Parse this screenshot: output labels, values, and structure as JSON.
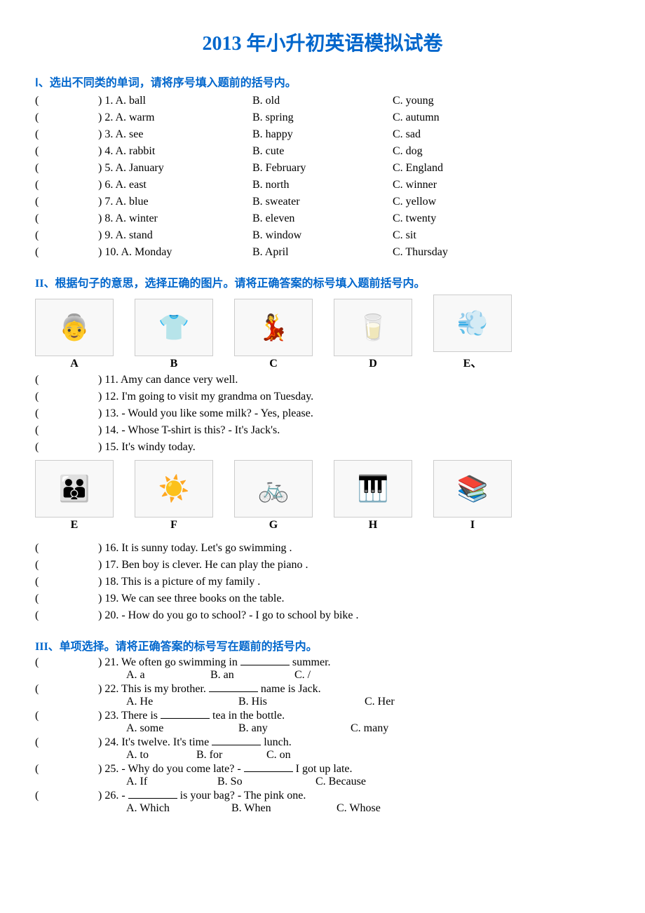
{
  "title": "2013 年小升初英语模拟试卷",
  "colors": {
    "accent": "#0066cc",
    "text": "#000000",
    "bg": "#ffffff"
  },
  "section1": {
    "header": "Ⅰ、选出不同类的单词，请将序号填入题前的括号内。",
    "paren": "(",
    "paren_close": ")",
    "questions": [
      {
        "n": "1",
        "a": "A. ball",
        "b": "B. old",
        "c": "C. young"
      },
      {
        "n": "2",
        "a": "A. warm",
        "b": "B. spring",
        "c": "C. autumn"
      },
      {
        "n": "3",
        "a": "A. see",
        "b": "B. happy",
        "c": "C. sad"
      },
      {
        "n": "4",
        "a": "A. rabbit",
        "b": "B. cute",
        "c": "C. dog"
      },
      {
        "n": "5",
        "a": "A. January",
        "b": "B. February",
        "c": "C. England"
      },
      {
        "n": "6",
        "a": "A. east",
        "b": "B. north",
        "c": "C. winner"
      },
      {
        "n": "7",
        "a": "A. blue",
        "b": "B. sweater",
        "c": "C. yellow"
      },
      {
        "n": "8",
        "a": "A. winter",
        "b": "B. eleven",
        "c": "C. twenty"
      },
      {
        "n": "9",
        "a": "A. stand",
        "b": "B. window",
        "c": "C. sit"
      },
      {
        "n": "10",
        "a": "A. Monday",
        "b": "B. April",
        "c": "C. Thursday"
      }
    ]
  },
  "section2": {
    "header": "II、根据句子的意思，选择正确的图片。请将正确答案的标号填入题前括号内。",
    "images1": [
      {
        "label": "A",
        "icon": "👵"
      },
      {
        "label": "B",
        "icon": "👕"
      },
      {
        "label": "C",
        "icon": "💃"
      },
      {
        "label": "D",
        "icon": "🥛"
      },
      {
        "label": "E、",
        "icon": "💨"
      }
    ],
    "questions1": [
      {
        "n": "11",
        "text": "Amy can dance very well."
      },
      {
        "n": "12",
        "text": "I'm going to visit my grandma on Tuesday."
      },
      {
        "n": "13",
        "text": "- Would you like some milk?          - Yes, please."
      },
      {
        "n": "14",
        "text": "- Whose T-shirt is this?        - It's Jack's."
      },
      {
        "n": "15",
        "text": "It's windy today."
      }
    ],
    "images2": [
      {
        "label": "E",
        "icon": "👪"
      },
      {
        "label": "F",
        "icon": "☀️"
      },
      {
        "label": "G",
        "icon": "🚲"
      },
      {
        "label": "H",
        "icon": "🎹"
      },
      {
        "label": "I",
        "icon": "📚"
      }
    ],
    "questions2": [
      {
        "n": "16",
        "text": "It is sunny today. Let's go swimming ."
      },
      {
        "n": "17",
        "text": "Ben boy is clever. He can play the piano ."
      },
      {
        "n": "18",
        "text": "This is a picture of my family ."
      },
      {
        "n": "19",
        "text": "We can see three books on the table."
      },
      {
        "n": "20",
        "text": "- How do you go to school?       - I go to school by bike ."
      }
    ]
  },
  "section3": {
    "header": "III、单项选择。请将正确答案的标号写在题前的括号内。",
    "questions": [
      {
        "n": "21",
        "stem_pre": "We often go swimming in ",
        "stem_post": " summer.",
        "opts": [
          "A. a",
          "B. an",
          "C. /"
        ],
        "widths": [
          120,
          120,
          120
        ]
      },
      {
        "n": "22",
        "stem_pre": "This is my brother.  ",
        "stem_post": " name is Jack.",
        "opts": [
          "A. He",
          "B. His",
          "C. Her"
        ],
        "widths": [
          160,
          180,
          120
        ]
      },
      {
        "n": "23",
        "stem_pre": "There is ",
        "stem_post": " tea in the bottle.",
        "opts": [
          "A. some",
          "B. any",
          "C. many"
        ],
        "widths": [
          160,
          160,
          120
        ]
      },
      {
        "n": "24",
        "stem_pre": "It's twelve. It's time  ",
        "stem_post": " lunch.",
        "opts": [
          "A. to",
          "B. for",
          "C. on"
        ],
        "widths": [
          100,
          100,
          100
        ]
      },
      {
        "n": "25",
        "stem_pre": "- Why do you come late?               - ",
        "stem_post": " I got up late.",
        "opts": [
          "A. If",
          "B. So",
          "C. Because"
        ],
        "widths": [
          130,
          140,
          120
        ]
      },
      {
        "n": "26",
        "stem_pre": "- ",
        "stem_post": " is your bag?              - The pink one.",
        "opts": [
          "A. Which",
          "B. When",
          "C. Whose"
        ],
        "widths": [
          150,
          150,
          120
        ]
      }
    ]
  }
}
